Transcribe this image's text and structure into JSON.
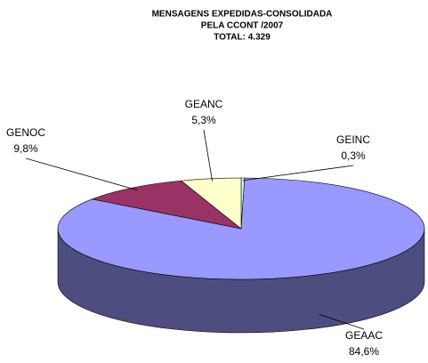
{
  "chart_data": {
    "type": "pie3d",
    "title": [
      "MENSAGENS EXPEDIDAS-CONSOLIDADA",
      "PELA CCONT /2007",
      "TOTAL: 4.329"
    ],
    "categories": [
      "GEINC",
      "GEAAC",
      "GENOC",
      "GEANC"
    ],
    "values": [
      0.3,
      84.6,
      9.8,
      5.3
    ],
    "value_labels": [
      "0,3%",
      "84,6%",
      "9,8%",
      "5,3%"
    ],
    "colors": [
      "#ccffff",
      "#9999ff",
      "#993366",
      "#ffffcc"
    ]
  }
}
